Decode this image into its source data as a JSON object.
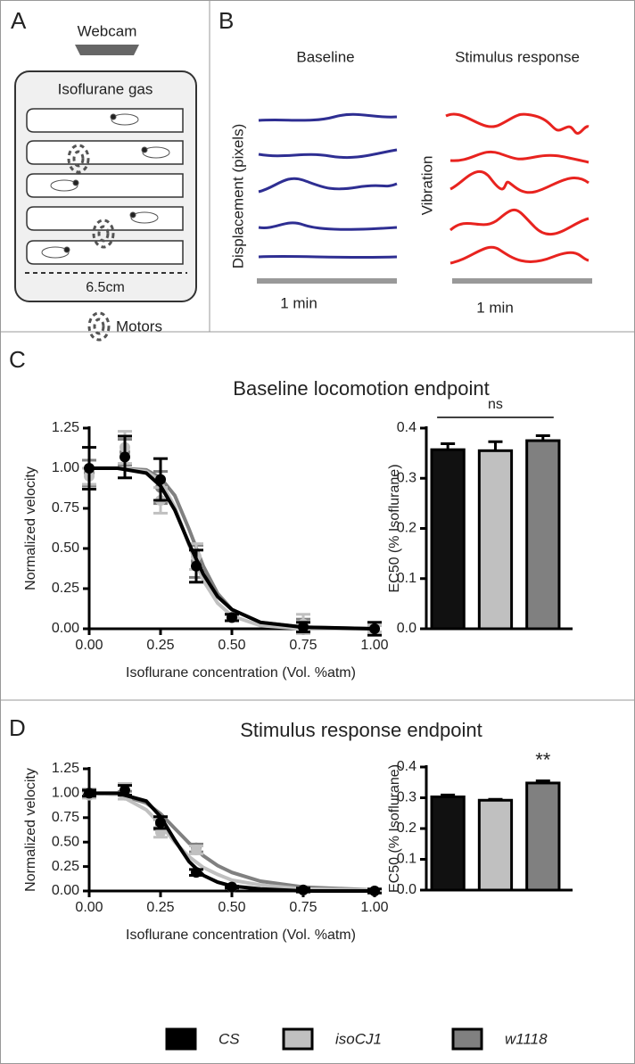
{
  "figure": {
    "panel_a": "A",
    "panel_b": "B",
    "panel_c": "C",
    "panel_d": "D",
    "webcam": "Webcam",
    "chamber": "Isoflurane gas",
    "scale": "6.5cm",
    "motors": "Motors",
    "baseline_title": "Baseline",
    "stimulus_title": "Stimulus response",
    "trace_y_label": "Displacement (pixels)",
    "stimulus_label": "Vibration",
    "baseline_time": "1 min",
    "stimulus_time": "1 min"
  },
  "chart_data": [
    {
      "type": "scatter",
      "title": "Baseline locomotion endpoint",
      "x_label": "Isoflurane concentration (Vol. %atm)",
      "y_label": "Normalized  velocity",
      "x": [
        0,
        0.125,
        0.25,
        0.375,
        0.5,
        0.75,
        1.0
      ],
      "xlim": [
        0,
        1
      ],
      "xticks": [
        {
          "value": 0,
          "label": "0.00"
        },
        0.25,
        {
          "value": 0.5,
          "label": "0.50"
        },
        0.75,
        {
          "value": 1,
          "label": "1.00"
        }
      ],
      "ylim": [
        0,
        1.25
      ],
      "yticks": [
        {
          "value": 0,
          "label": "0.00"
        },
        0.25,
        {
          "value": 0.5,
          "label": "0.50"
        },
        0.75,
        {
          "value": 1,
          "label": "1.00"
        },
        1.25
      ],
      "fit_x": [
        0,
        0.1,
        0.2,
        0.25,
        0.3,
        0.35,
        0.4,
        0.45,
        0.5,
        0.6,
        0.75,
        1.0
      ],
      "series": [
        {
          "name": "CS",
          "color": "#000000",
          "values": [
            1.0,
            1.07,
            0.93,
            0.39,
            0.07,
            0.01,
            0.0
          ],
          "errors": [
            0.13,
            0.13,
            0.13,
            0.1,
            0.02,
            0.03,
            0.04
          ],
          "fit_values": [
            1.0,
            1.0,
            0.97,
            0.89,
            0.74,
            0.53,
            0.34,
            0.2,
            0.12,
            0.04,
            0.01,
            0.0
          ]
        },
        {
          "name": "isoCJ1",
          "color": "#c0c0c0",
          "values": [
            0.95,
            1.13,
            0.8,
            0.45,
            0.07,
            0.03,
            0.0
          ],
          "errors": [
            0.05,
            0.1,
            0.08,
            0.08,
            0.02,
            0.06,
            0.02
          ],
          "fit_values": [
            1.0,
            1.0,
            0.98,
            0.92,
            0.76,
            0.52,
            0.3,
            0.16,
            0.08,
            0.02,
            0.0,
            0.0
          ]
        },
        {
          "name": "w1118",
          "color": "#808080",
          "values": [
            0.97,
            1.1,
            0.88,
            0.42,
            0.07,
            0.02,
            0.0
          ],
          "errors": [
            0.08,
            0.08,
            0.1,
            0.1,
            0.02,
            0.04,
            0.02
          ],
          "fit_values": [
            1.0,
            1.0,
            0.99,
            0.94,
            0.83,
            0.62,
            0.39,
            0.22,
            0.12,
            0.04,
            0.01,
            0.0
          ]
        }
      ]
    },
    {
      "type": "bar",
      "y_label": "EC50 (% Isoflurane)",
      "categories": [
        null,
        null,
        null
      ],
      "values": [
        0.357,
        0.355,
        0.375
      ],
      "errors": [
        0.012,
        0.018,
        0.01
      ],
      "colors": [
        "#111111",
        "#c0c0c0",
        "#808080"
      ],
      "ylim": [
        0,
        0.4
      ],
      "yticks": [
        {
          "value": 0,
          "label": "0.0"
        },
        0.1,
        0.2,
        0.3,
        0.4
      ],
      "annotation": "ns"
    },
    {
      "type": "scatter",
      "title": "Stimulus response endpoint",
      "x_label": "Isoflurane concentration (Vol. %atm)",
      "y_label": "Normalized  velocity",
      "x": [
        0,
        0.125,
        0.25,
        0.375,
        0.5,
        0.75,
        1.0
      ],
      "xlim": [
        0,
        1
      ],
      "xticks": [
        {
          "value": 0,
          "label": "0.00"
        },
        0.25,
        {
          "value": 0.5,
          "label": "0.50"
        },
        0.75,
        {
          "value": 1,
          "label": "1.00"
        }
      ],
      "ylim": [
        0,
        1.25
      ],
      "yticks": [
        {
          "value": 0,
          "label": "0.00"
        },
        0.25,
        {
          "value": 0.5,
          "label": "0.50"
        },
        0.75,
        {
          "value": 1,
          "label": "1.00"
        },
        1.25
      ],
      "fit_x": [
        0,
        0.1,
        0.2,
        0.25,
        0.3,
        0.35,
        0.4,
        0.45,
        0.5,
        0.6,
        0.75,
        1.0
      ],
      "series": [
        {
          "name": "CS",
          "color": "#000000",
          "values": [
            1.0,
            1.03,
            0.7,
            0.19,
            0.04,
            0.01,
            0.0
          ],
          "errors": [
            0.03,
            0.05,
            0.06,
            0.03,
            0.01,
            0.02,
            0.02
          ],
          "fit_values": [
            1.0,
            1.0,
            0.92,
            0.76,
            0.52,
            0.3,
            0.16,
            0.09,
            0.05,
            0.02,
            0.0,
            0.0
          ]
        },
        {
          "name": "isoCJ1",
          "color": "#c0c0c0",
          "values": [
            0.98,
            1.02,
            0.6,
            0.42,
            0.04,
            0.01,
            0.0
          ],
          "errors": [
            0.03,
            0.08,
            0.05,
            0.04,
            0.01,
            0.02,
            0.02
          ],
          "fit_values": [
            1.0,
            0.99,
            0.83,
            0.68,
            0.5,
            0.35,
            0.24,
            0.17,
            0.11,
            0.06,
            0.02,
            0.01
          ]
        },
        {
          "name": "w1118",
          "color": "#808080",
          "values": [
            1.0,
            0.98,
            0.68,
            0.44,
            0.04,
            0.01,
            0.0
          ],
          "errors": [
            0.04,
            0.04,
            0.05,
            0.04,
            0.01,
            0.02,
            0.02
          ],
          "fit_values": [
            1.0,
            0.99,
            0.9,
            0.79,
            0.64,
            0.49,
            0.36,
            0.26,
            0.19,
            0.1,
            0.04,
            0.01
          ]
        }
      ]
    },
    {
      "type": "bar",
      "y_label": "EC50 (% Isoflurane)",
      "categories": [
        null,
        null,
        null
      ],
      "values": [
        0.303,
        0.292,
        0.348
      ],
      "errors": [
        0.006,
        0.003,
        0.007
      ],
      "colors": [
        "#111111",
        "#c0c0c0",
        "#808080"
      ],
      "ylim": [
        0,
        0.4
      ],
      "yticks": [
        {
          "value": 0,
          "label": "0.0"
        },
        0.1,
        0.2,
        0.3,
        0.4
      ],
      "annotation": "**"
    }
  ]
}
